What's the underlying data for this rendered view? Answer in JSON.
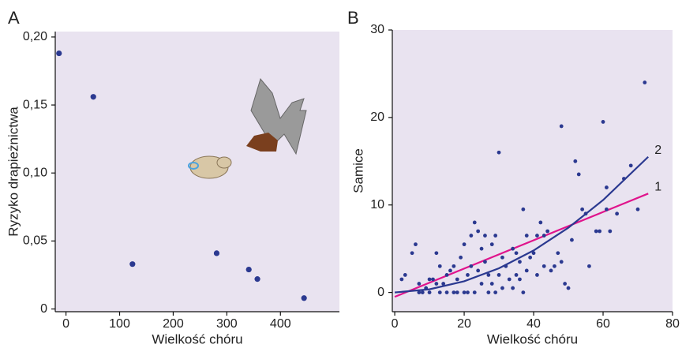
{
  "chart_data": [
    {
      "type": "scatter",
      "panel_label": "A",
      "xlabel": "Wielkość chóru",
      "ylabel": "Ryzyko drapieżnictwa",
      "color": "#2b3990",
      "x": [
        -13,
        51,
        124,
        281,
        341,
        357,
        444
      ],
      "values": [
        0.188,
        0.156,
        0.033,
        0.041,
        0.029,
        0.022,
        0.008
      ],
      "xlim": [
        -20,
        510
      ],
      "xticks": [
        0,
        100,
        200,
        300,
        400
      ],
      "ylim": [
        -0.002,
        0.204
      ],
      "yticks": [
        0,
        {
          "value": 0.05,
          "label": "0,05"
        },
        {
          "value": 0.1,
          "label": "0,10"
        },
        {
          "value": 0.15,
          "label": "0,15"
        },
        {
          "value": 0.2,
          "label": "0,20"
        }
      ]
    },
    {
      "type": "scatter",
      "panel_label": "B",
      "xlabel": "Wielkość chóru",
      "ylabel": "Samice",
      "color": "#2b3990",
      "x": [
        2,
        3,
        5,
        6,
        7,
        7,
        8,
        9,
        10,
        10,
        11,
        12,
        12,
        13,
        13,
        14,
        15,
        15,
        16,
        17,
        17,
        18,
        18,
        19,
        20,
        20,
        21,
        21,
        22,
        22,
        23,
        23,
        24,
        24,
        25,
        25,
        26,
        26,
        27,
        27,
        28,
        28,
        29,
        29,
        30,
        30,
        31,
        31,
        32,
        33,
        34,
        34,
        35,
        35,
        36,
        36,
        37,
        37,
        38,
        38,
        39,
        40,
        41,
        41,
        42,
        43,
        43,
        44,
        45,
        46,
        47,
        48,
        48,
        49,
        50,
        51,
        52,
        53,
        54,
        55,
        56,
        58,
        59,
        60,
        61,
        61,
        62,
        64,
        66,
        68,
        70,
        72
      ],
      "values": [
        1.5,
        2,
        4.5,
        5.5,
        0,
        1,
        0,
        0.5,
        1.5,
        0,
        1.5,
        4.5,
        1,
        3,
        0,
        1,
        2,
        0,
        2.5,
        3,
        0,
        1.5,
        0,
        4,
        5.5,
        0,
        2,
        0,
        6.5,
        3,
        8,
        0,
        7,
        2.5,
        5,
        1,
        3.5,
        6.5,
        2,
        0,
        5.5,
        1,
        6.5,
        0,
        16,
        2,
        4,
        0.5,
        3,
        1.5,
        5,
        0.5,
        4.5,
        2,
        3.5,
        1.5,
        9.5,
        0,
        6.5,
        2.5,
        4,
        4.5,
        6.5,
        2,
        8,
        3,
        6.5,
        7,
        2.5,
        3,
        4.5,
        19,
        3.5,
        1,
        0.5,
        6,
        15,
        13.5,
        9.5,
        9,
        3,
        7,
        7,
        19.5,
        12,
        9.5,
        7,
        9,
        13,
        14.5,
        9.5,
        24
      ],
      "fits": [
        {
          "name": "1",
          "color": "#e0148c",
          "x": [
            0,
            73
          ],
          "values": [
            -0.5,
            11.3
          ]
        },
        {
          "name": "2",
          "color": "#2b3990",
          "x": [
            0,
            10,
            20,
            30,
            40,
            50,
            60,
            73
          ],
          "values": [
            0,
            0.36,
            1.28,
            2.76,
            4.8,
            7.4,
            10.56,
            15.5
          ]
        }
      ],
      "xlim": [
        -0.7,
        80
      ],
      "xticks": [
        0,
        20,
        40,
        60,
        80
      ],
      "ylim": [
        -2.2,
        30
      ],
      "yticks": [
        0,
        10,
        20,
        30
      ]
    }
  ]
}
